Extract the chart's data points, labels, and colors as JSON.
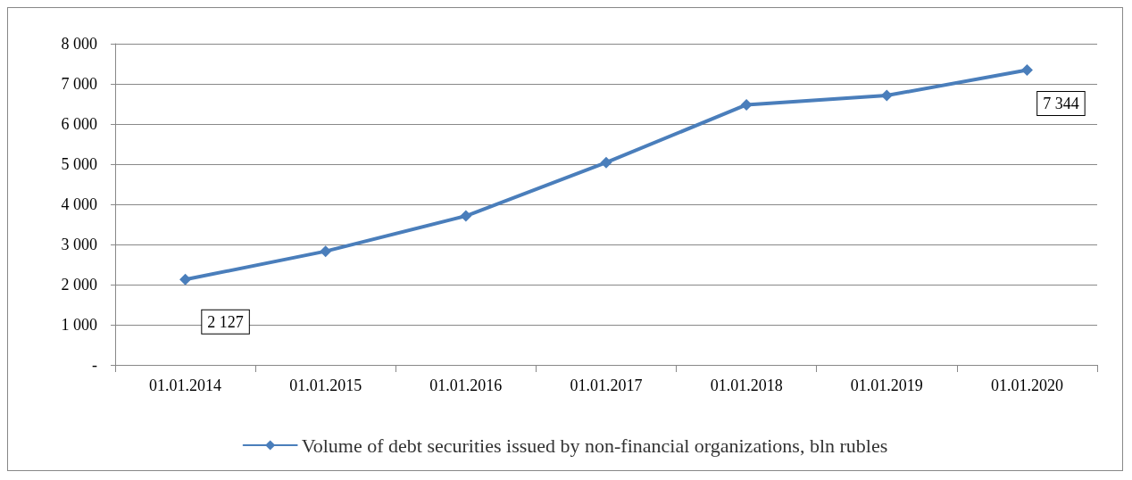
{
  "chart_data": {
    "type": "line",
    "categories": [
      "01.01.2014",
      "01.01.2015",
      "01.01.2016",
      "01.01.2017",
      "01.01.2018",
      "01.01.2019",
      "01.01.2020"
    ],
    "series": [
      {
        "name": "Volume of debt securities issued by non-financial organizations, bln rubles",
        "color": "#4a7ebb",
        "values": [
          2127,
          2830,
          3710,
          5040,
          6480,
          6710,
          7344
        ],
        "value_labels": [
          "2 127",
          null,
          null,
          null,
          null,
          null,
          "7 344"
        ]
      }
    ],
    "ylim": [
      0,
      8000
    ],
    "yticks": [
      {
        "value": 0,
        "label": "-"
      },
      {
        "value": 1000,
        "label": "1 000"
      },
      {
        "value": 2000,
        "label": "2 000"
      },
      {
        "value": 3000,
        "label": "3 000"
      },
      {
        "value": 4000,
        "label": "4 000"
      },
      {
        "value": 5000,
        "label": "5 000"
      },
      {
        "value": 6000,
        "label": "6 000"
      },
      {
        "value": 7000,
        "label": "7 000"
      },
      {
        "value": 8000,
        "label": "8 000"
      }
    ],
    "grid": "y",
    "legend": "bottom",
    "marker": "diamond",
    "line_style": "solid"
  }
}
